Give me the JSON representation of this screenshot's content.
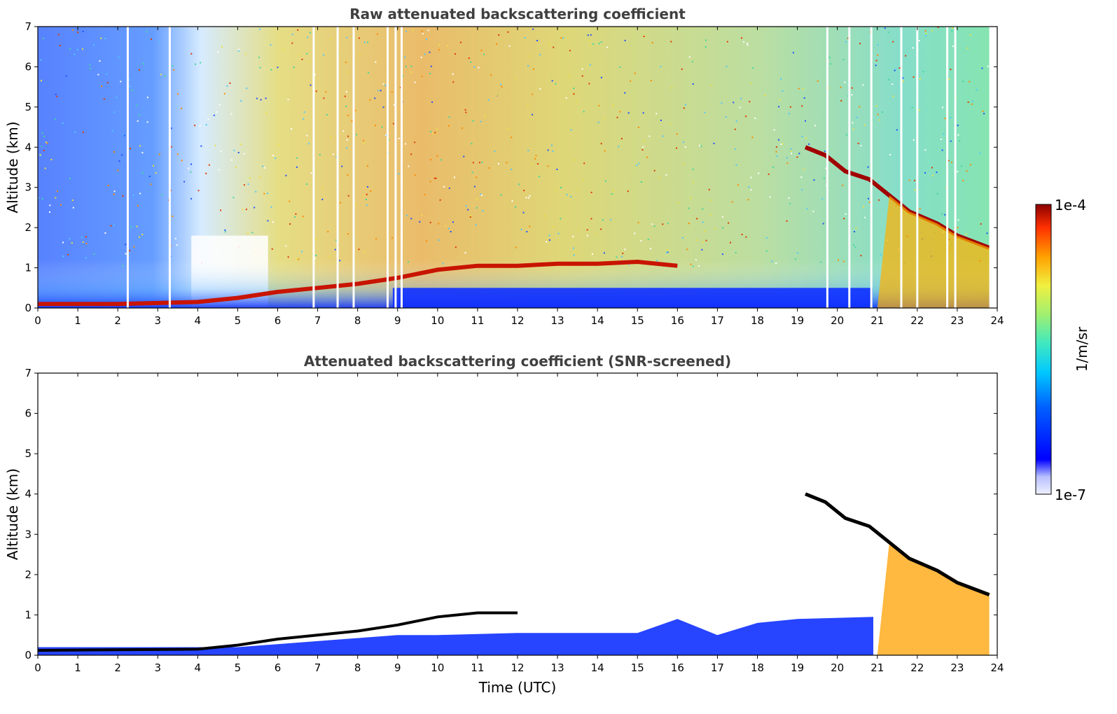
{
  "chart_data": [
    {
      "type": "heatmap",
      "title": "Raw attenuated backscattering coefficient",
      "xlabel": "",
      "ylabel": "Altitude (km)",
      "xlim": [
        0,
        24
      ],
      "ylim": [
        0,
        7
      ],
      "x_ticks": [
        "0",
        "1",
        "2",
        "3",
        "4",
        "5",
        "6",
        "7",
        "8",
        "9",
        "10",
        "11",
        "12",
        "13",
        "14",
        "15",
        "16",
        "17",
        "18",
        "19",
        "20",
        "21",
        "22",
        "23",
        "24"
      ],
      "y_ticks": [
        "0",
        "1",
        "2",
        "3",
        "4",
        "5",
        "6",
        "7"
      ],
      "features": {
        "surface_layer": [
          [
            0,
            0.1
          ],
          [
            2,
            0.1
          ],
          [
            4,
            0.15
          ],
          [
            5,
            0.25
          ],
          [
            6,
            0.4
          ],
          [
            7,
            0.5
          ],
          [
            8,
            0.6
          ],
          [
            9,
            0.75
          ],
          [
            10,
            0.95
          ],
          [
            11,
            1.05
          ],
          [
            12,
            1.05
          ],
          [
            13,
            1.1
          ],
          [
            14,
            1.1
          ],
          [
            15,
            1.15
          ],
          [
            16,
            1.05
          ]
        ],
        "cloud_layer": [
          [
            19.2,
            4.0
          ],
          [
            19.7,
            3.8
          ],
          [
            20.2,
            3.4
          ],
          [
            20.8,
            3.2
          ],
          [
            21.3,
            2.8
          ],
          [
            21.8,
            2.4
          ],
          [
            22.5,
            2.1
          ],
          [
            23.0,
            1.8
          ],
          [
            23.8,
            1.5
          ]
        ],
        "missing_data_hours": [
          2.25,
          3.3,
          6.9,
          7.5,
          7.9,
          8.75,
          8.95,
          9.1,
          19.75,
          20.3,
          20.85,
          21.6,
          22.0,
          22.75,
          22.95
        ]
      }
    },
    {
      "type": "heatmap",
      "title": "Attenuated backscattering coefficient (SNR-screened)",
      "xlabel": "Time (UTC)",
      "ylabel": "Altitude (km)",
      "xlim": [
        0,
        24
      ],
      "ylim": [
        0,
        7
      ],
      "x_ticks": [
        "0",
        "1",
        "2",
        "3",
        "4",
        "5",
        "6",
        "7",
        "8",
        "9",
        "10",
        "11",
        "12",
        "13",
        "14",
        "15",
        "16",
        "17",
        "18",
        "19",
        "20",
        "21",
        "22",
        "23",
        "24"
      ],
      "y_ticks": [
        "0",
        "1",
        "2",
        "3",
        "4",
        "5",
        "6",
        "7"
      ],
      "features": {
        "aerosol_top": [
          [
            0,
            0.2
          ],
          [
            5,
            0.2
          ],
          [
            9,
            0.5
          ],
          [
            10,
            0.5
          ],
          [
            12,
            0.55
          ],
          [
            15,
            0.55
          ],
          [
            16,
            0.9
          ],
          [
            17,
            0.5
          ],
          [
            18,
            0.8
          ],
          [
            19,
            0.9
          ],
          [
            20.9,
            0.95
          ]
        ],
        "cloud_layer": [
          [
            19.2,
            4.0
          ],
          [
            19.7,
            3.8
          ],
          [
            20.2,
            3.4
          ],
          [
            20.8,
            3.2
          ],
          [
            21.3,
            2.8
          ],
          [
            21.8,
            2.4
          ],
          [
            22.5,
            2.1
          ],
          [
            23.0,
            1.8
          ],
          [
            23.8,
            1.5
          ]
        ]
      }
    }
  ],
  "colorbar": {
    "label": "1/m/sr",
    "max_label": "1e-4",
    "min_label": "1e-7",
    "scale": "log",
    "colors": [
      "#eef0ff",
      "#b8c0ff",
      "#0000ff",
      "#0060ff",
      "#00c8ff",
      "#40e8c0",
      "#a0f070",
      "#f0f040",
      "#ffa000",
      "#ff3000",
      "#8b0000"
    ]
  }
}
